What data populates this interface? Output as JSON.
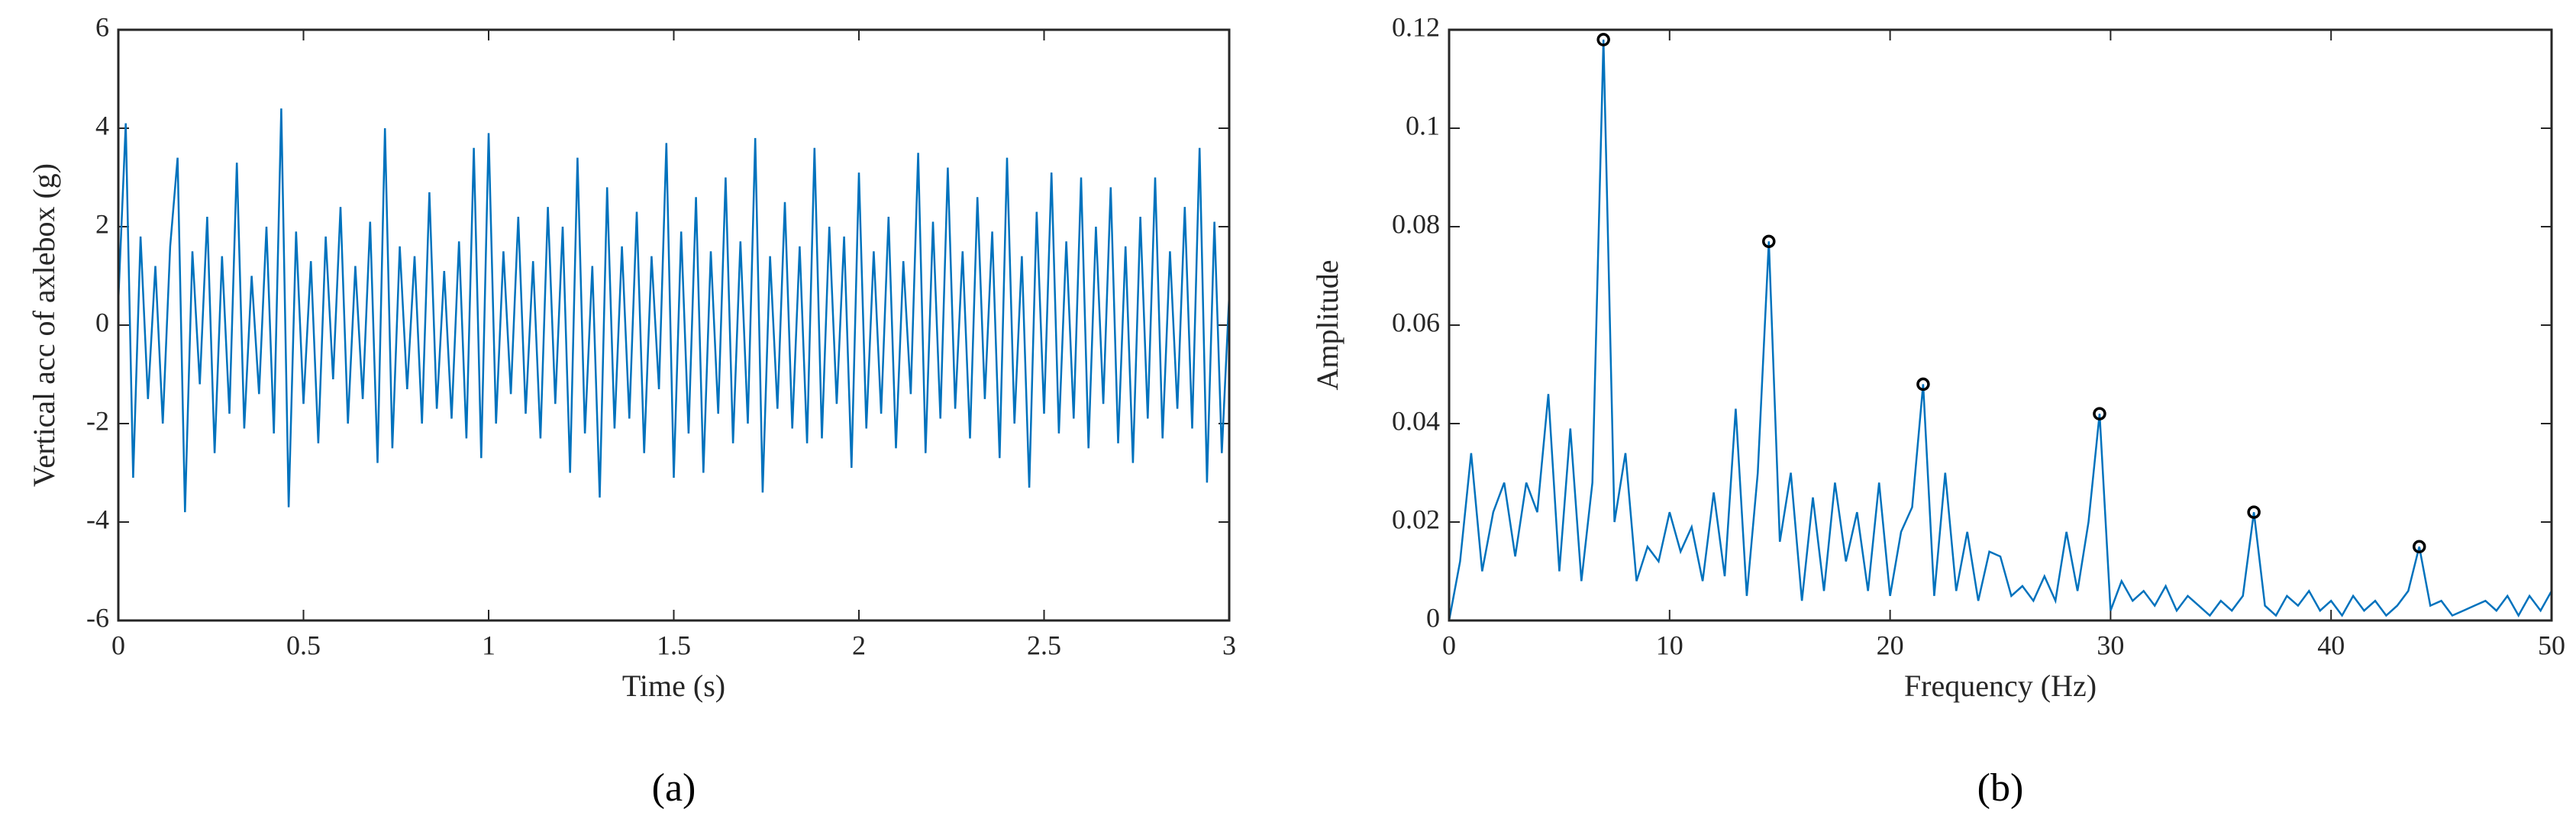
{
  "chart_data": [
    {
      "type": "line",
      "label": "(a)",
      "xlabel": "Time (s)",
      "ylabel": "Vertical acc of axlebox (g)",
      "color": "#0072bd",
      "xlim": [
        0,
        3
      ],
      "ylim": [
        -6,
        6
      ],
      "xticks": [
        0,
        0.5,
        1,
        1.5,
        2,
        2.5,
        3
      ],
      "yticks": [
        -6,
        -4,
        -2,
        0,
        2,
        4,
        6
      ],
      "x": [
        0,
        0.02,
        0.04,
        0.06,
        0.08,
        0.1,
        0.12,
        0.14,
        0.16,
        0.18,
        0.2,
        0.22,
        0.24,
        0.26,
        0.28,
        0.3,
        0.32,
        0.34,
        0.36,
        0.38,
        0.4,
        0.42,
        0.44,
        0.46,
        0.48,
        0.5,
        0.52,
        0.54,
        0.56,
        0.58,
        0.6,
        0.62,
        0.64,
        0.66,
        0.68,
        0.7,
        0.72,
        0.74,
        0.76,
        0.78,
        0.8,
        0.82,
        0.84,
        0.86,
        0.88,
        0.9,
        0.92,
        0.94,
        0.96,
        0.98,
        1,
        1.02,
        1.04,
        1.06,
        1.08,
        1.1,
        1.12,
        1.14,
        1.16,
        1.18,
        1.2,
        1.22,
        1.24,
        1.26,
        1.28,
        1.3,
        1.32,
        1.34,
        1.36,
        1.38,
        1.4,
        1.42,
        1.44,
        1.46,
        1.48,
        1.5,
        1.52,
        1.54,
        1.56,
        1.58,
        1.6,
        1.62,
        1.64,
        1.66,
        1.68,
        1.7,
        1.72,
        1.74,
        1.76,
        1.78,
        1.8,
        1.82,
        1.84,
        1.86,
        1.88,
        1.9,
        1.92,
        1.94,
        1.96,
        1.98,
        2,
        2.02,
        2.04,
        2.06,
        2.08,
        2.1,
        2.12,
        2.14,
        2.16,
        2.18,
        2.2,
        2.22,
        2.24,
        2.26,
        2.28,
        2.3,
        2.32,
        2.34,
        2.36,
        2.38,
        2.4,
        2.42,
        2.44,
        2.46,
        2.48,
        2.5,
        2.52,
        2.54,
        2.56,
        2.58,
        2.6,
        2.62,
        2.64,
        2.66,
        2.68,
        2.7,
        2.72,
        2.74,
        2.76,
        2.78,
        2.8,
        2.82,
        2.84,
        2.86,
        2.88,
        2.9,
        2.92,
        2.94,
        2.96,
        2.98,
        3
      ],
      "values": [
        0.5,
        4.1,
        -3.1,
        1.8,
        -1.5,
        1.2,
        -2.0,
        1.6,
        3.4,
        -3.8,
        1.5,
        -1.2,
        2.2,
        -2.6,
        1.4,
        -1.8,
        3.3,
        -2.1,
        1.0,
        -1.4,
        2.0,
        -2.2,
        4.4,
        -3.7,
        1.9,
        -1.6,
        1.3,
        -2.4,
        1.8,
        -1.1,
        2.4,
        -2.0,
        1.2,
        -1.5,
        2.1,
        -2.8,
        4.0,
        -2.5,
        1.6,
        -1.3,
        1.4,
        -2.0,
        2.7,
        -1.7,
        1.1,
        -1.9,
        1.7,
        -2.3,
        3.6,
        -2.7,
        3.9,
        -2.0,
        1.5,
        -1.4,
        2.2,
        -1.8,
        1.3,
        -2.3,
        2.4,
        -1.6,
        2.0,
        -3.0,
        3.4,
        -2.2,
        1.2,
        -3.5,
        2.8,
        -2.1,
        1.6,
        -1.9,
        2.3,
        -2.6,
        1.4,
        -1.3,
        3.7,
        -3.1,
        1.9,
        -2.2,
        2.6,
        -3.0,
        1.5,
        -1.8,
        3.0,
        -2.4,
        1.7,
        -2.0,
        3.8,
        -3.4,
        1.4,
        -1.7,
        2.5,
        -2.1,
        1.6,
        -2.4,
        3.6,
        -2.3,
        2.0,
        -1.6,
        1.8,
        -2.9,
        3.1,
        -2.1,
        1.5,
        -1.8,
        2.2,
        -2.5,
        1.3,
        -1.4,
        3.5,
        -2.6,
        2.1,
        -1.9,
        3.2,
        -1.7,
        1.5,
        -2.3,
        2.6,
        -1.5,
        1.9,
        -2.7,
        3.4,
        -2.0,
        1.4,
        -3.3,
        2.3,
        -1.8,
        3.1,
        -2.2,
        1.7,
        -1.9,
        3.0,
        -2.5,
        2.0,
        -1.6,
        2.8,
        -2.4,
        1.6,
        -2.8,
        2.2,
        -1.9,
        3.0,
        -2.3,
        1.5,
        -1.7,
        2.4,
        -2.1,
        3.6,
        -3.2,
        2.1,
        -2.6,
        0.6
      ]
    },
    {
      "type": "line",
      "label": "(b)",
      "xlabel": "Frequency (Hz)",
      "ylabel": "Amplitude",
      "color": "#0072bd",
      "xlim": [
        0,
        50
      ],
      "ylim": [
        0,
        0.12
      ],
      "xticks": [
        0,
        10,
        20,
        30,
        40,
        50
      ],
      "yticks": [
        0,
        0.02,
        0.04,
        0.06,
        0.08,
        0.1,
        0.12
      ],
      "x": [
        0,
        0.5,
        1,
        1.5,
        2,
        2.5,
        3,
        3.5,
        4,
        4.5,
        5,
        5.5,
        6,
        6.5,
        7,
        7.5,
        8,
        8.5,
        9,
        9.5,
        10,
        10.5,
        11,
        11.5,
        12,
        12.5,
        13,
        13.5,
        14,
        14.5,
        15,
        15.5,
        16,
        16.5,
        17,
        17.5,
        18,
        18.5,
        19,
        19.5,
        20,
        20.5,
        21,
        21.5,
        22,
        22.5,
        23,
        23.5,
        24,
        24.5,
        25,
        25.5,
        26,
        26.5,
        27,
        27.5,
        28,
        28.5,
        29,
        29.5,
        30,
        30.5,
        31,
        31.5,
        32,
        32.5,
        33,
        33.5,
        34,
        34.5,
        35,
        35.5,
        36,
        36.5,
        37,
        37.5,
        38,
        38.5,
        39,
        39.5,
        40,
        40.5,
        41,
        41.5,
        42,
        42.5,
        43,
        43.5,
        44,
        44.5,
        45,
        45.5,
        46,
        46.5,
        47,
        47.5,
        48,
        48.5,
        49,
        49.5,
        50
      ],
      "values": [
        0.0,
        0.012,
        0.034,
        0.01,
        0.022,
        0.028,
        0.013,
        0.028,
        0.022,
        0.046,
        0.01,
        0.039,
        0.008,
        0.028,
        0.118,
        0.02,
        0.034,
        0.008,
        0.015,
        0.012,
        0.022,
        0.014,
        0.019,
        0.008,
        0.026,
        0.009,
        0.043,
        0.005,
        0.03,
        0.077,
        0.016,
        0.03,
        0.004,
        0.025,
        0.006,
        0.028,
        0.012,
        0.022,
        0.006,
        0.028,
        0.005,
        0.018,
        0.023,
        0.048,
        0.005,
        0.03,
        0.006,
        0.018,
        0.004,
        0.014,
        0.013,
        0.005,
        0.007,
        0.004,
        0.009,
        0.004,
        0.018,
        0.006,
        0.02,
        0.042,
        0.002,
        0.008,
        0.004,
        0.006,
        0.003,
        0.007,
        0.002,
        0.005,
        0.003,
        0.001,
        0.004,
        0.002,
        0.005,
        0.022,
        0.003,
        0.001,
        0.005,
        0.003,
        0.006,
        0.002,
        0.004,
        0.001,
        0.005,
        0.002,
        0.004,
        0.001,
        0.003,
        0.006,
        0.015,
        0.003,
        0.004,
        0.001,
        0.002,
        0.003,
        0.004,
        0.002,
        0.005,
        0.001,
        0.005,
        0.002,
        0.006
      ],
      "peaks": {
        "x": [
          7,
          14.5,
          21.5,
          29.5,
          36.5,
          44
        ],
        "values": [
          0.118,
          0.077,
          0.048,
          0.042,
          0.022,
          0.015
        ]
      }
    }
  ]
}
